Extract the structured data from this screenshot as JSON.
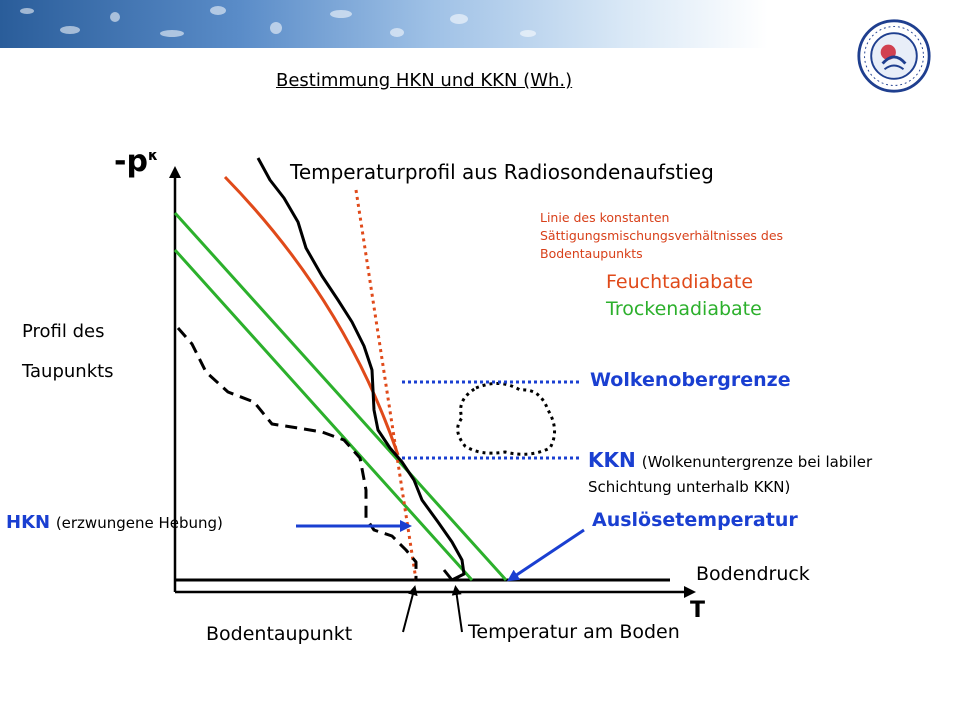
{
  "title": "Bestimmung HKN und KKN (Wh.)",
  "axes": {
    "y": "-p",
    "y_exponent": "κ",
    "x": "T"
  },
  "labels": {
    "temperature_profile": "Temperaturprofil aus Radiosondenaufstieg",
    "dewpoint_profile_line1": "Profil des",
    "dewpoint_profile_line2": "Taupunkts",
    "mixing_ratio_line": "Linie des konstanten Sättigungsmischungsverhältnisses des Bodentaupunkts",
    "moist_adiabat": "Feuchtadiabate",
    "dry_adiabat": "Trockenadiabate",
    "cloud_top": "Wolkenobergrenze",
    "kkn_abbr": "KKN",
    "kkn_desc": "(Wolkenuntergrenze bei labiler Schichtung unterhalb KKN)",
    "hkn_abbr": "HKN",
    "hkn_desc": "(erzwungene Hebung)",
    "trigger_temperature": "Auslösetemperatur",
    "surface_pressure": "Bodendruck",
    "surface_dewpoint": "Bodentaupunkt",
    "surface_temperature": "Temperatur am Boden"
  },
  "logo": {
    "lettering": "IGM - Bereich Meteorologie - Universität zu Köln"
  },
  "colors": {
    "moist_adiabat": "#e04a1a",
    "dry_adiabat": "#2cb02c",
    "mixing_ratio": "#d8401a",
    "levels": "#1a3fd1",
    "axes": "#000000"
  }
}
